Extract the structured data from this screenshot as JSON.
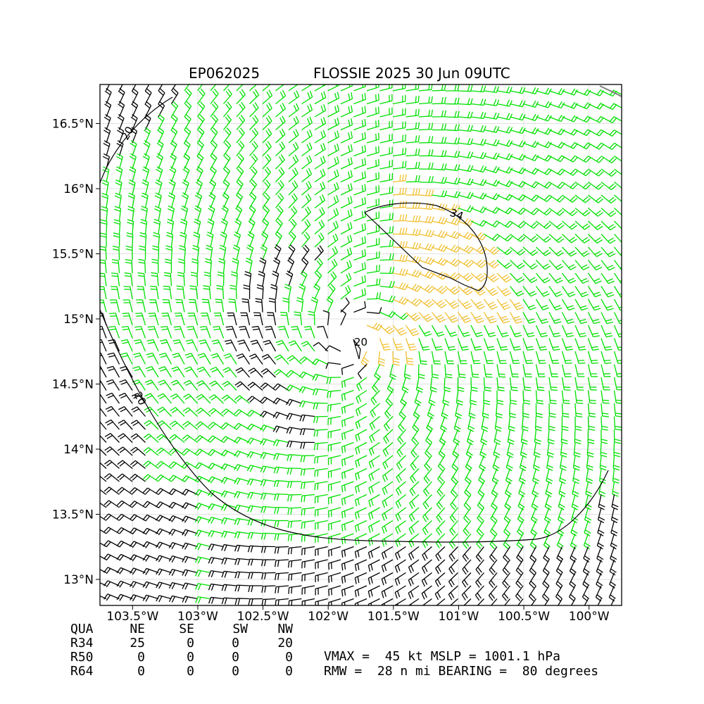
{
  "header": {
    "storm_id": "EP062025",
    "title": "FLOSSIE 2025 30 Jun 09UTC"
  },
  "map": {
    "lon_range": [
      -103.75,
      -99.75
    ],
    "lat_range": [
      12.8,
      16.8
    ],
    "lon_ticks": [
      "103.5°W",
      "103°W",
      "102.5°W",
      "102°W",
      "101.5°W",
      "101°W",
      "100.5°W",
      "100°W"
    ],
    "lat_ticks": [
      "13°N",
      "13.5°N",
      "14°N",
      "14.5°N",
      "15°N",
      "15.5°N",
      "16°N",
      "16.5°N"
    ],
    "center": {
      "lon": -101.8,
      "lat": 14.85
    },
    "contour_labels": [
      "20",
      "20",
      "34",
      "20"
    ],
    "colors": {
      "low": "#000000",
      "ts": "#00e000",
      "strong": "#f0c030",
      "coast": "#808080"
    }
  },
  "wind_radii": {
    "header": [
      "QUA",
      "NE",
      "SE",
      "SW",
      "NW"
    ],
    "rows": [
      {
        "label": "R34",
        "values": [
          "25",
          "0",
          "0",
          "20"
        ]
      },
      {
        "label": "R50",
        "values": [
          "0",
          "0",
          "0",
          "0"
        ]
      },
      {
        "label": "R64",
        "values": [
          "0",
          "0",
          "0",
          "0"
        ]
      }
    ]
  },
  "stats": {
    "line1": "VMAX =  45 kt MSLP = 1001.1 hPa",
    "line2": "RMW =  28 n mi BEARING =  80 degrees"
  }
}
